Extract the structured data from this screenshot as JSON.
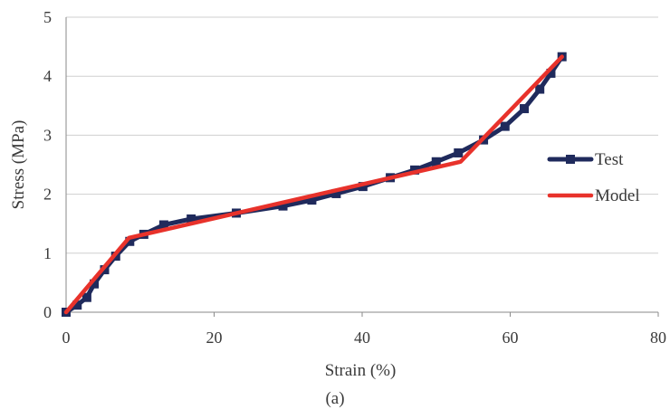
{
  "chart_data": {
    "type": "line",
    "caption": "(a)",
    "xlabel": "Strain (%)",
    "ylabel": "Stress (MPa)",
    "xlim": [
      0,
      80
    ],
    "ylim": [
      0,
      5
    ],
    "xticks": [
      "0",
      "20",
      "40",
      "60",
      "80"
    ],
    "yticks": [
      "0",
      "1",
      "2",
      "3",
      "4",
      "5"
    ],
    "grid": "horizontal",
    "legend_position": "right",
    "series": [
      {
        "name": "Test",
        "color": "#1f2a5c",
        "marker": "square",
        "points": [
          [
            0,
            0
          ],
          [
            1.5,
            0.12
          ],
          [
            2.8,
            0.25
          ],
          [
            3.8,
            0.48
          ],
          [
            5.2,
            0.72
          ],
          [
            6.7,
            0.95
          ],
          [
            8.6,
            1.2
          ],
          [
            10.5,
            1.32
          ],
          [
            13.2,
            1.48
          ],
          [
            16.9,
            1.58
          ],
          [
            23,
            1.68
          ],
          [
            29.3,
            1.8
          ],
          [
            33.2,
            1.9
          ],
          [
            36.5,
            2.01
          ],
          [
            40.1,
            2.13
          ],
          [
            43.8,
            2.28
          ],
          [
            47.1,
            2.41
          ],
          [
            50,
            2.55
          ],
          [
            53,
            2.7
          ],
          [
            56.4,
            2.92
          ],
          [
            59.3,
            3.15
          ],
          [
            61.9,
            3.45
          ],
          [
            64,
            3.78
          ],
          [
            65.5,
            4.05
          ],
          [
            67,
            4.33
          ]
        ]
      },
      {
        "name": "Model",
        "color": "#e8322b",
        "marker": "none",
        "points": [
          [
            0,
            0
          ],
          [
            8.5,
            1.26
          ],
          [
            53.3,
            2.55
          ],
          [
            67,
            4.33
          ]
        ]
      }
    ]
  }
}
